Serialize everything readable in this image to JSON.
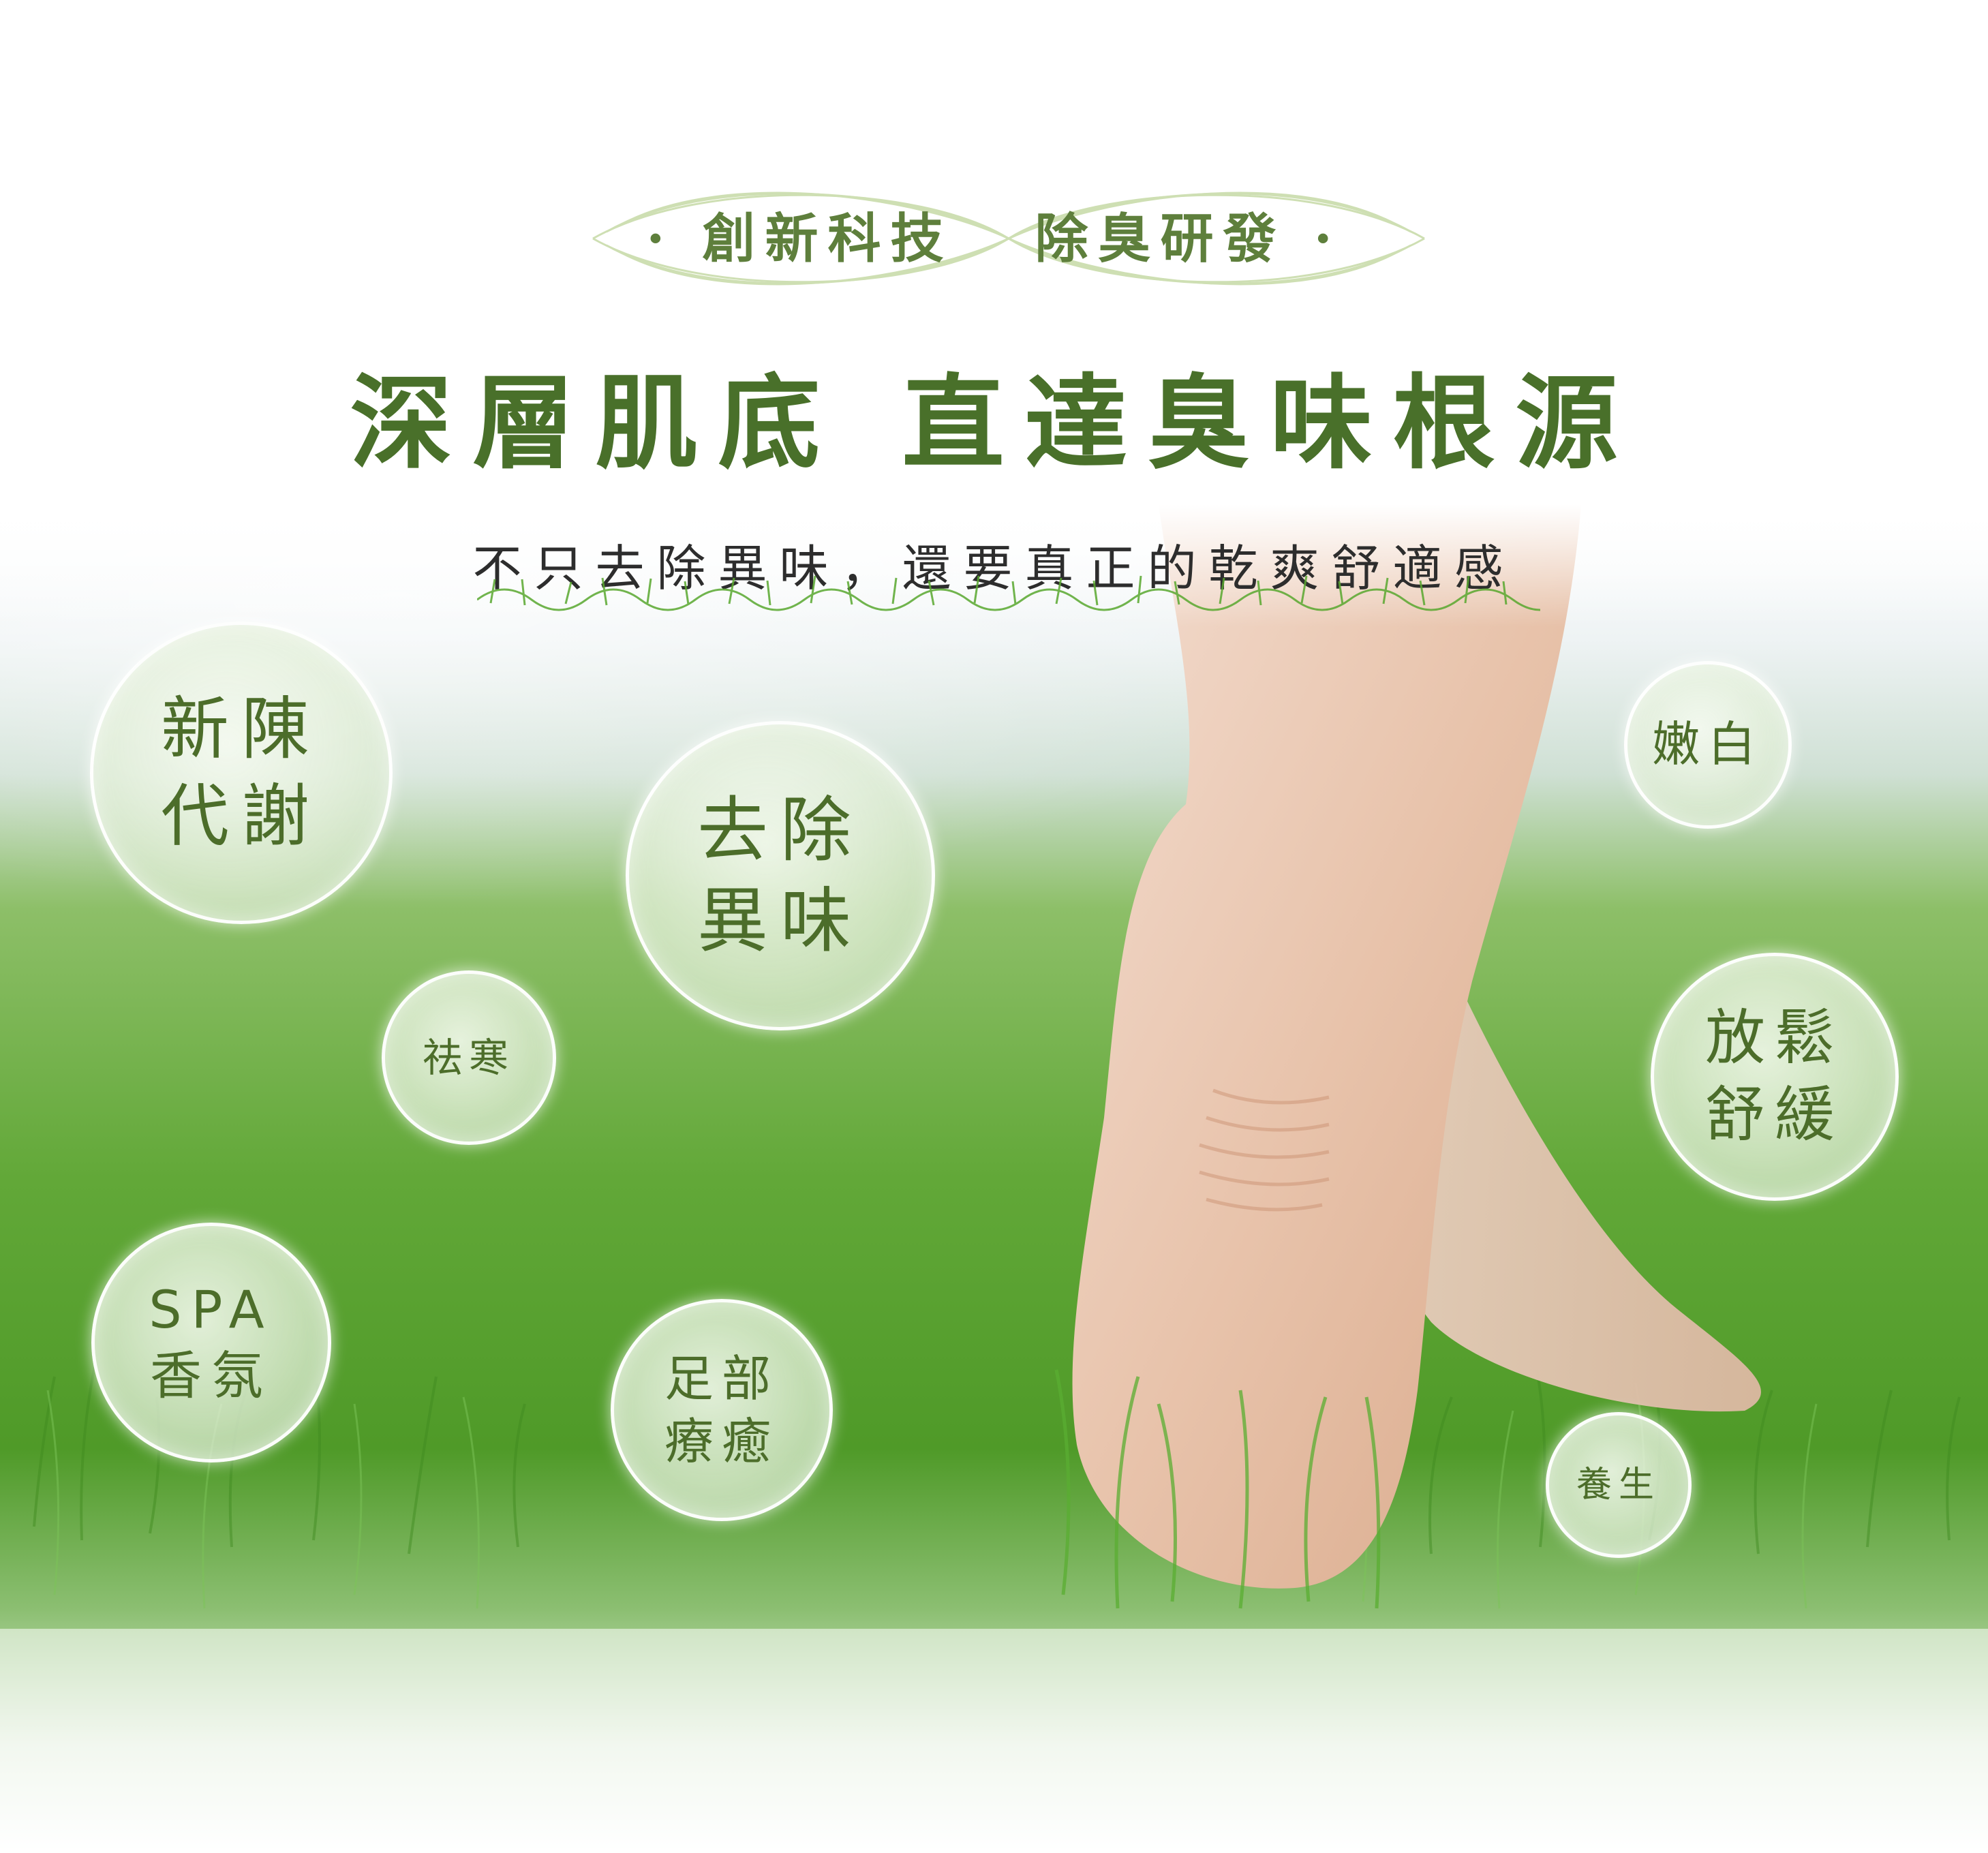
{
  "tagline": {
    "left": "· 創新科技",
    "right": "除臭研發 ·"
  },
  "headline": {
    "left": "深層肌底",
    "right": "直達臭味根源"
  },
  "subline": "不只去除異味，還要真正的乾爽舒適感",
  "bubbles": {
    "metabolism": {
      "line1": "新陳",
      "line2": "代謝"
    },
    "deodorize": {
      "line1": "去除",
      "line2": "異味"
    },
    "whitening": {
      "line1": "嫩白"
    },
    "warmth": {
      "line1": "祛寒"
    },
    "relax": {
      "line1": "放鬆",
      "line2": "舒緩"
    },
    "spa": {
      "line1": "SPA",
      "line2": "香氛"
    },
    "foot_therapy": {
      "line1": "足部",
      "line2": "療癒"
    },
    "wellness": {
      "line1": "養生"
    }
  },
  "colors": {
    "headline": "#49702a",
    "tagline": "#5e7f3c",
    "bubble_text": "#4c6d2a",
    "grass": "#4fa02a"
  }
}
